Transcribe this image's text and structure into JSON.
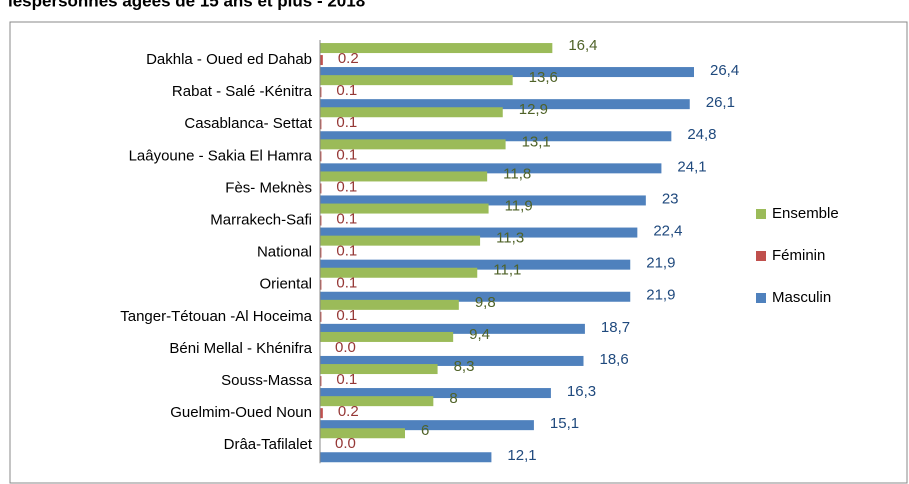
{
  "chart_data": {
    "type": "hbar",
    "title": "lespersonnes âgées de 15 ans et plus - 2018",
    "categories": [
      "Dakhla - Oued ed Dahab",
      "Rabat - Salé -Kénitra",
      "Casablanca- Settat",
      "Laâyoune - Sakia El Hamra",
      "Fès- Meknès",
      "Marrakech-Safi",
      "National",
      "Oriental",
      "Tanger-Tétouan -Al Hoceima",
      "Béni Mellal - Khénifra",
      "Souss-Massa",
      "Guelmim-Oued Noun",
      "Drâa-Tafilalet"
    ],
    "series": [
      {
        "name": "Ensemble",
        "color": "#9bbb59",
        "label_color": "#4f6228",
        "values": [
          16.4,
          13.6,
          12.9,
          13.1,
          11.8,
          11.9,
          11.3,
          11.1,
          9.8,
          9.4,
          8.3,
          8,
          6
        ],
        "value_labels": [
          "16,4",
          "13,6",
          "12,9",
          "13,1",
          "11,8",
          "11,9",
          "11,3",
          "11,1",
          "9,8",
          "9,4",
          "8,3",
          "8",
          "6"
        ]
      },
      {
        "name": "Féminin",
        "color": "#c0504d",
        "label_color": "#953735",
        "values": [
          0.2,
          0.1,
          0.1,
          0.1,
          0.1,
          0.1,
          0.1,
          0.1,
          0.1,
          0,
          0.1,
          0.2,
          0
        ],
        "value_labels": [
          "0.2",
          "0.1",
          "0.1",
          "0.1",
          "0.1",
          "0.1",
          "0.1",
          "0.1",
          "0.1",
          "0.0",
          "0.1",
          "0.2",
          "0.0"
        ]
      },
      {
        "name": "Masculin",
        "color": "#4f81bd",
        "label_color": "#1f497d",
        "values": [
          26.4,
          26.1,
          24.8,
          24.1,
          23,
          22.4,
          21.9,
          21.9,
          18.7,
          18.6,
          16.3,
          15.1,
          12.1
        ],
        "value_labels": [
          "26,4",
          "26,1",
          "24,8",
          "24,1",
          "23",
          "22,4",
          "21,9",
          "21,9",
          "18,7",
          "18,6",
          "16,3",
          "15,1",
          "12,1"
        ]
      }
    ],
    "xlim": [
      0,
      30
    ]
  }
}
